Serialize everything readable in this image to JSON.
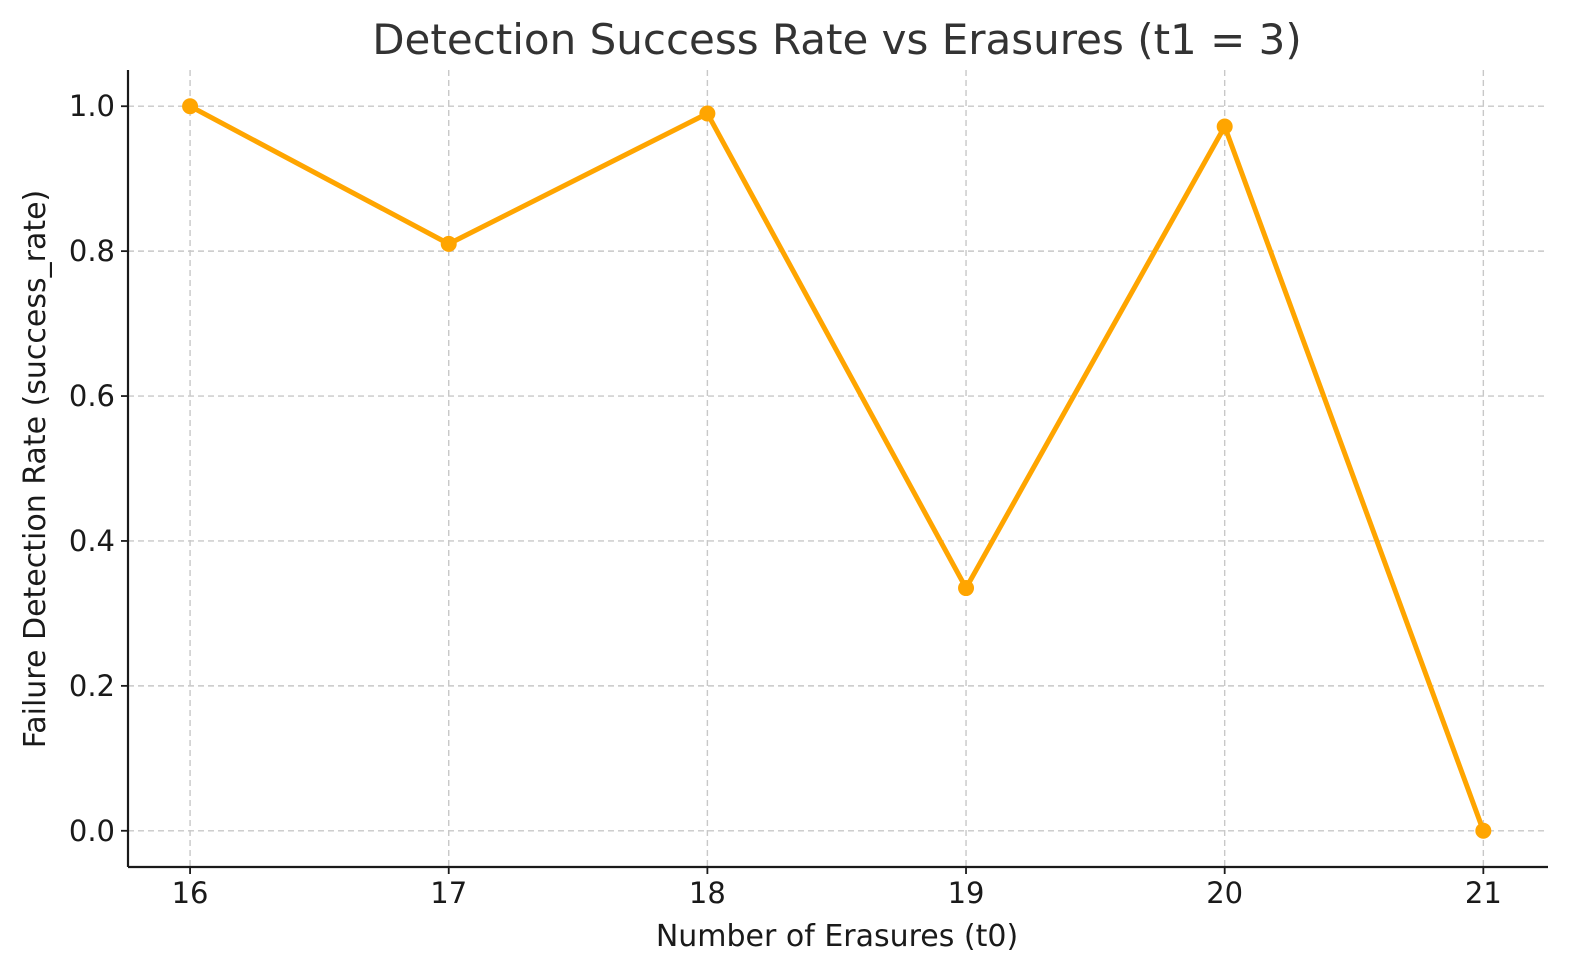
{
  "chart_data": {
    "type": "line",
    "title": "Detection Success Rate vs Erasures (t1 = 3)",
    "xlabel": "Number of Erasures (t0)",
    "ylabel": "Failure Detection Rate (success_rate)",
    "x": [
      16,
      17,
      18,
      19,
      20,
      21
    ],
    "x_tick_labels": [
      "16",
      "17",
      "18",
      "19",
      "20",
      "21"
    ],
    "y_tick_values": [
      0.0,
      0.2,
      0.4,
      0.6,
      0.8,
      1.0
    ],
    "y_tick_labels": [
      "0.0",
      "0.2",
      "0.4",
      "0.6",
      "0.8",
      "1.0"
    ],
    "series": [
      {
        "values": [
          1.0,
          0.81,
          0.99,
          0.335,
          0.972,
          0.0
        ],
        "color": "#FFA500",
        "marker": "circle"
      }
    ],
    "xlim": [
      15.76,
      21.25
    ],
    "ylim": [
      -0.05,
      1.05
    ],
    "grid": true,
    "legend": "none",
    "colors": {
      "line": "#FFA500",
      "grid": "#c8c8c8",
      "axis": "#1a1a1a",
      "title": "#333333"
    }
  }
}
